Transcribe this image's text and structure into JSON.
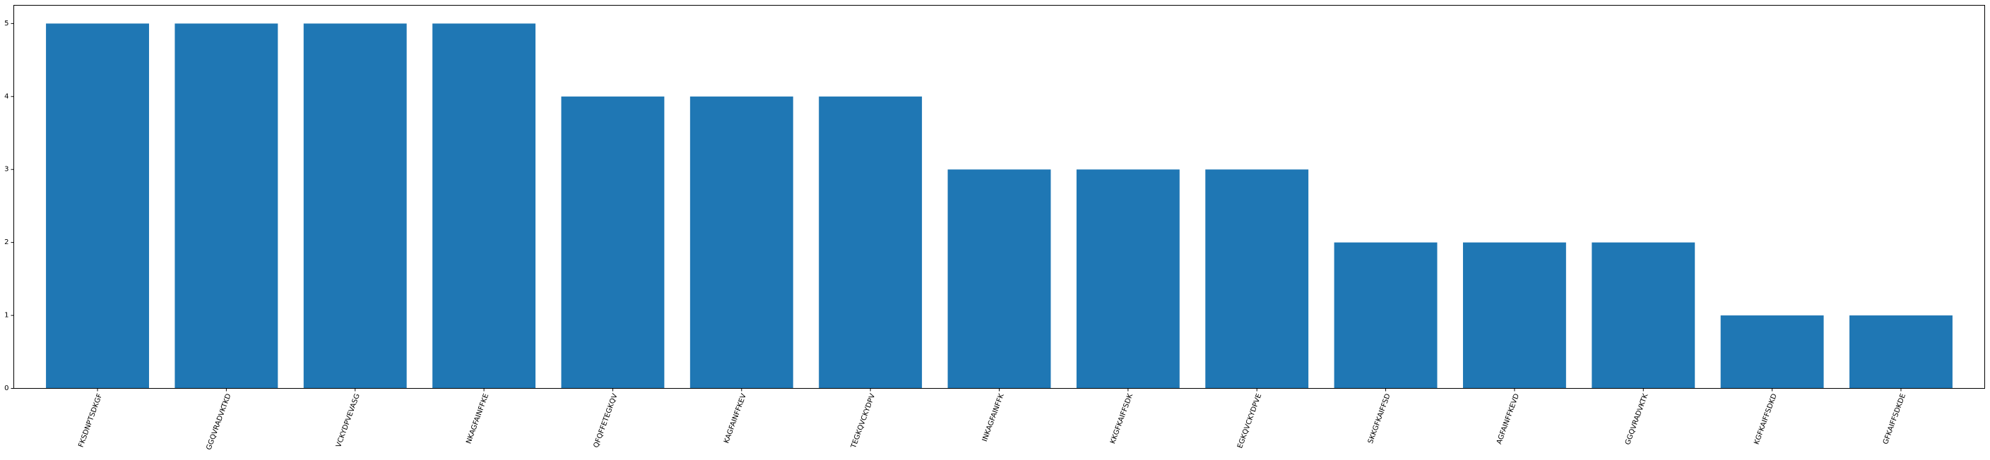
{
  "chart_data": {
    "type": "bar",
    "title": "",
    "xlabel": "",
    "ylabel": "",
    "categories": [
      "FKSDNPTSDKGF",
      "GGQVRADVKTKD",
      "VCKYDPVEVASG",
      "NKAGFAINFFKE",
      "QFQFFETEGKQV",
      "KAGFAINFFKEV",
      "TEGKQVCKYDPV",
      "INKAGFAINFFK",
      "KKGFKAIFFSDK",
      "EGKQVCKYDPVE",
      "SKKGFKAIFFSD",
      "AGFAINFFKEVD",
      "GGQVRADVKTK",
      "KGFKAIFFSDKD",
      "GFKAIFFSDKDE"
    ],
    "values": [
      5,
      5,
      5,
      5,
      4,
      4,
      4,
      3,
      3,
      3,
      2,
      2,
      2,
      1,
      1
    ],
    "yticks": [
      0,
      1,
      2,
      3,
      4,
      5
    ],
    "ylim": [
      0,
      5.25
    ],
    "grid": false,
    "bar_color": "#1f77b4",
    "spine_color": "#000000"
  }
}
